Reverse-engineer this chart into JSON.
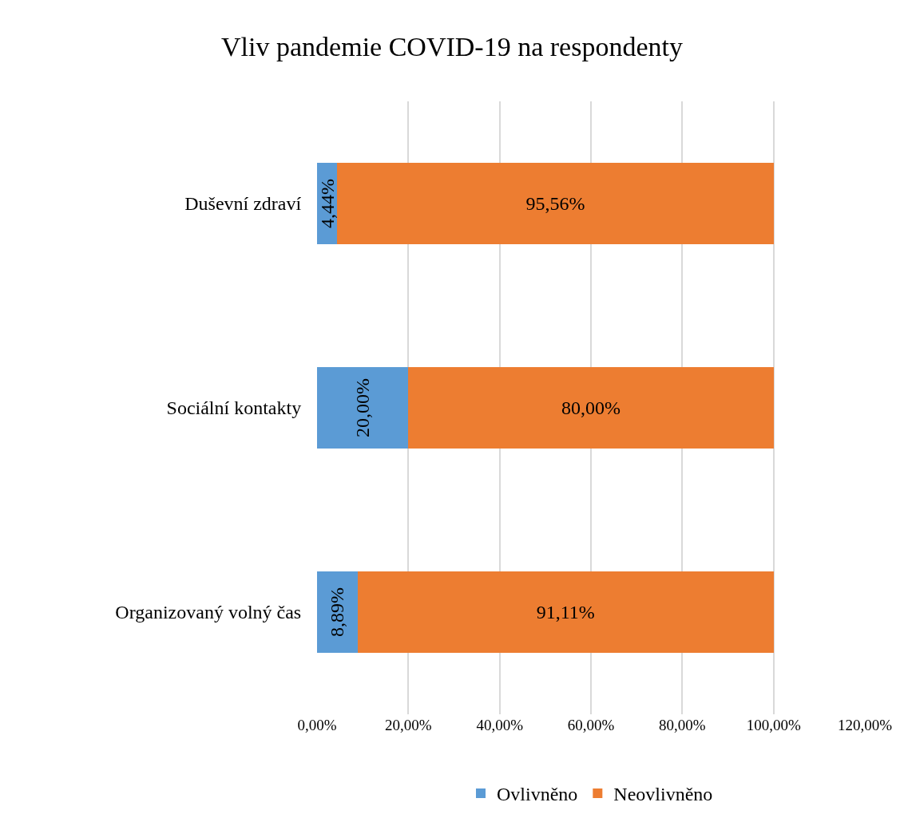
{
  "chart_data": {
    "type": "bar",
    "title": "Vliv pandemie COVID-19 na respondenty",
    "orientation": "horizontal",
    "stacked": true,
    "categories": [
      "Duševní zdraví",
      "Sociální kontakty",
      "Organizovaný volný čas"
    ],
    "series": [
      {
        "name": "Ovlivněno",
        "color": "#5b9bd5",
        "values": [
          4.44,
          20,
          8.89
        ],
        "value_labels": [
          "4,44%",
          "20,00%",
          "8,89%"
        ]
      },
      {
        "name": "Neovlivněno",
        "color": "#ed7d31",
        "values": [
          95.56,
          80,
          91.11
        ],
        "value_labels": [
          "95,56%",
          "80,00%",
          "91,11%"
        ]
      }
    ],
    "xlim": [
      0,
      120
    ],
    "xticks": [
      {
        "value": 0,
        "label": "0,00%"
      },
      {
        "value": 20,
        "label": "20,00%"
      },
      {
        "value": 40,
        "label": "40,00%"
      },
      {
        "value": 60,
        "label": "60,00%"
      },
      {
        "value": 80,
        "label": "80,00%"
      },
      {
        "value": 100,
        "label": "100,00%"
      },
      {
        "value": 120,
        "label": "120,00%"
      }
    ],
    "grid": "x",
    "legend": "bottom"
  }
}
